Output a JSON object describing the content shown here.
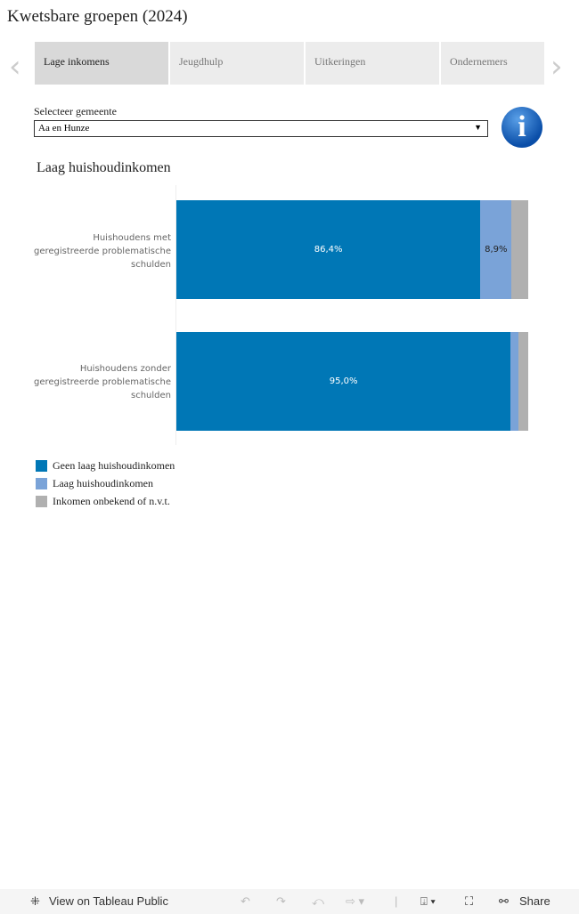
{
  "title": "Kwetsbare groepen (2024)",
  "tabs": [
    {
      "label": "Lage inkomens",
      "active": true
    },
    {
      "label": "Jeugdhulp"
    },
    {
      "label": "Uitkeringen"
    },
    {
      "label": "Ondernemers"
    }
  ],
  "selector": {
    "label": "Selecteer gemeente",
    "value": "Aa en Hunze"
  },
  "chart_data": {
    "type": "bar",
    "stacked": true,
    "orientation": "horizontal",
    "title": "Laag huishoudinkomen",
    "categories": [
      "Huishoudens met geregistreerde problematische schulden",
      "Huishoudens zonder geregistreerde problematische schulden"
    ],
    "series": [
      {
        "name": "Geen laag huishoudinkomen",
        "color": "#0077b6",
        "values": [
          86.4,
          95.0
        ],
        "labels": [
          "86,4%",
          "95,0%"
        ]
      },
      {
        "name": "Laag huishoudinkomen",
        "color": "#7aa3d8",
        "values": [
          8.9,
          2.3
        ],
        "labels": [
          "8,9%",
          ""
        ]
      },
      {
        "name": "Inkomen onbekend of n.v.t.",
        "color": "#b0b0b0",
        "values": [
          4.7,
          2.7
        ],
        "labels": [
          "",
          ""
        ]
      }
    ],
    "xlim": [
      0,
      100
    ],
    "legend": "bottom-left"
  },
  "footer": {
    "view": "View on Tableau Public",
    "share": "Share"
  }
}
